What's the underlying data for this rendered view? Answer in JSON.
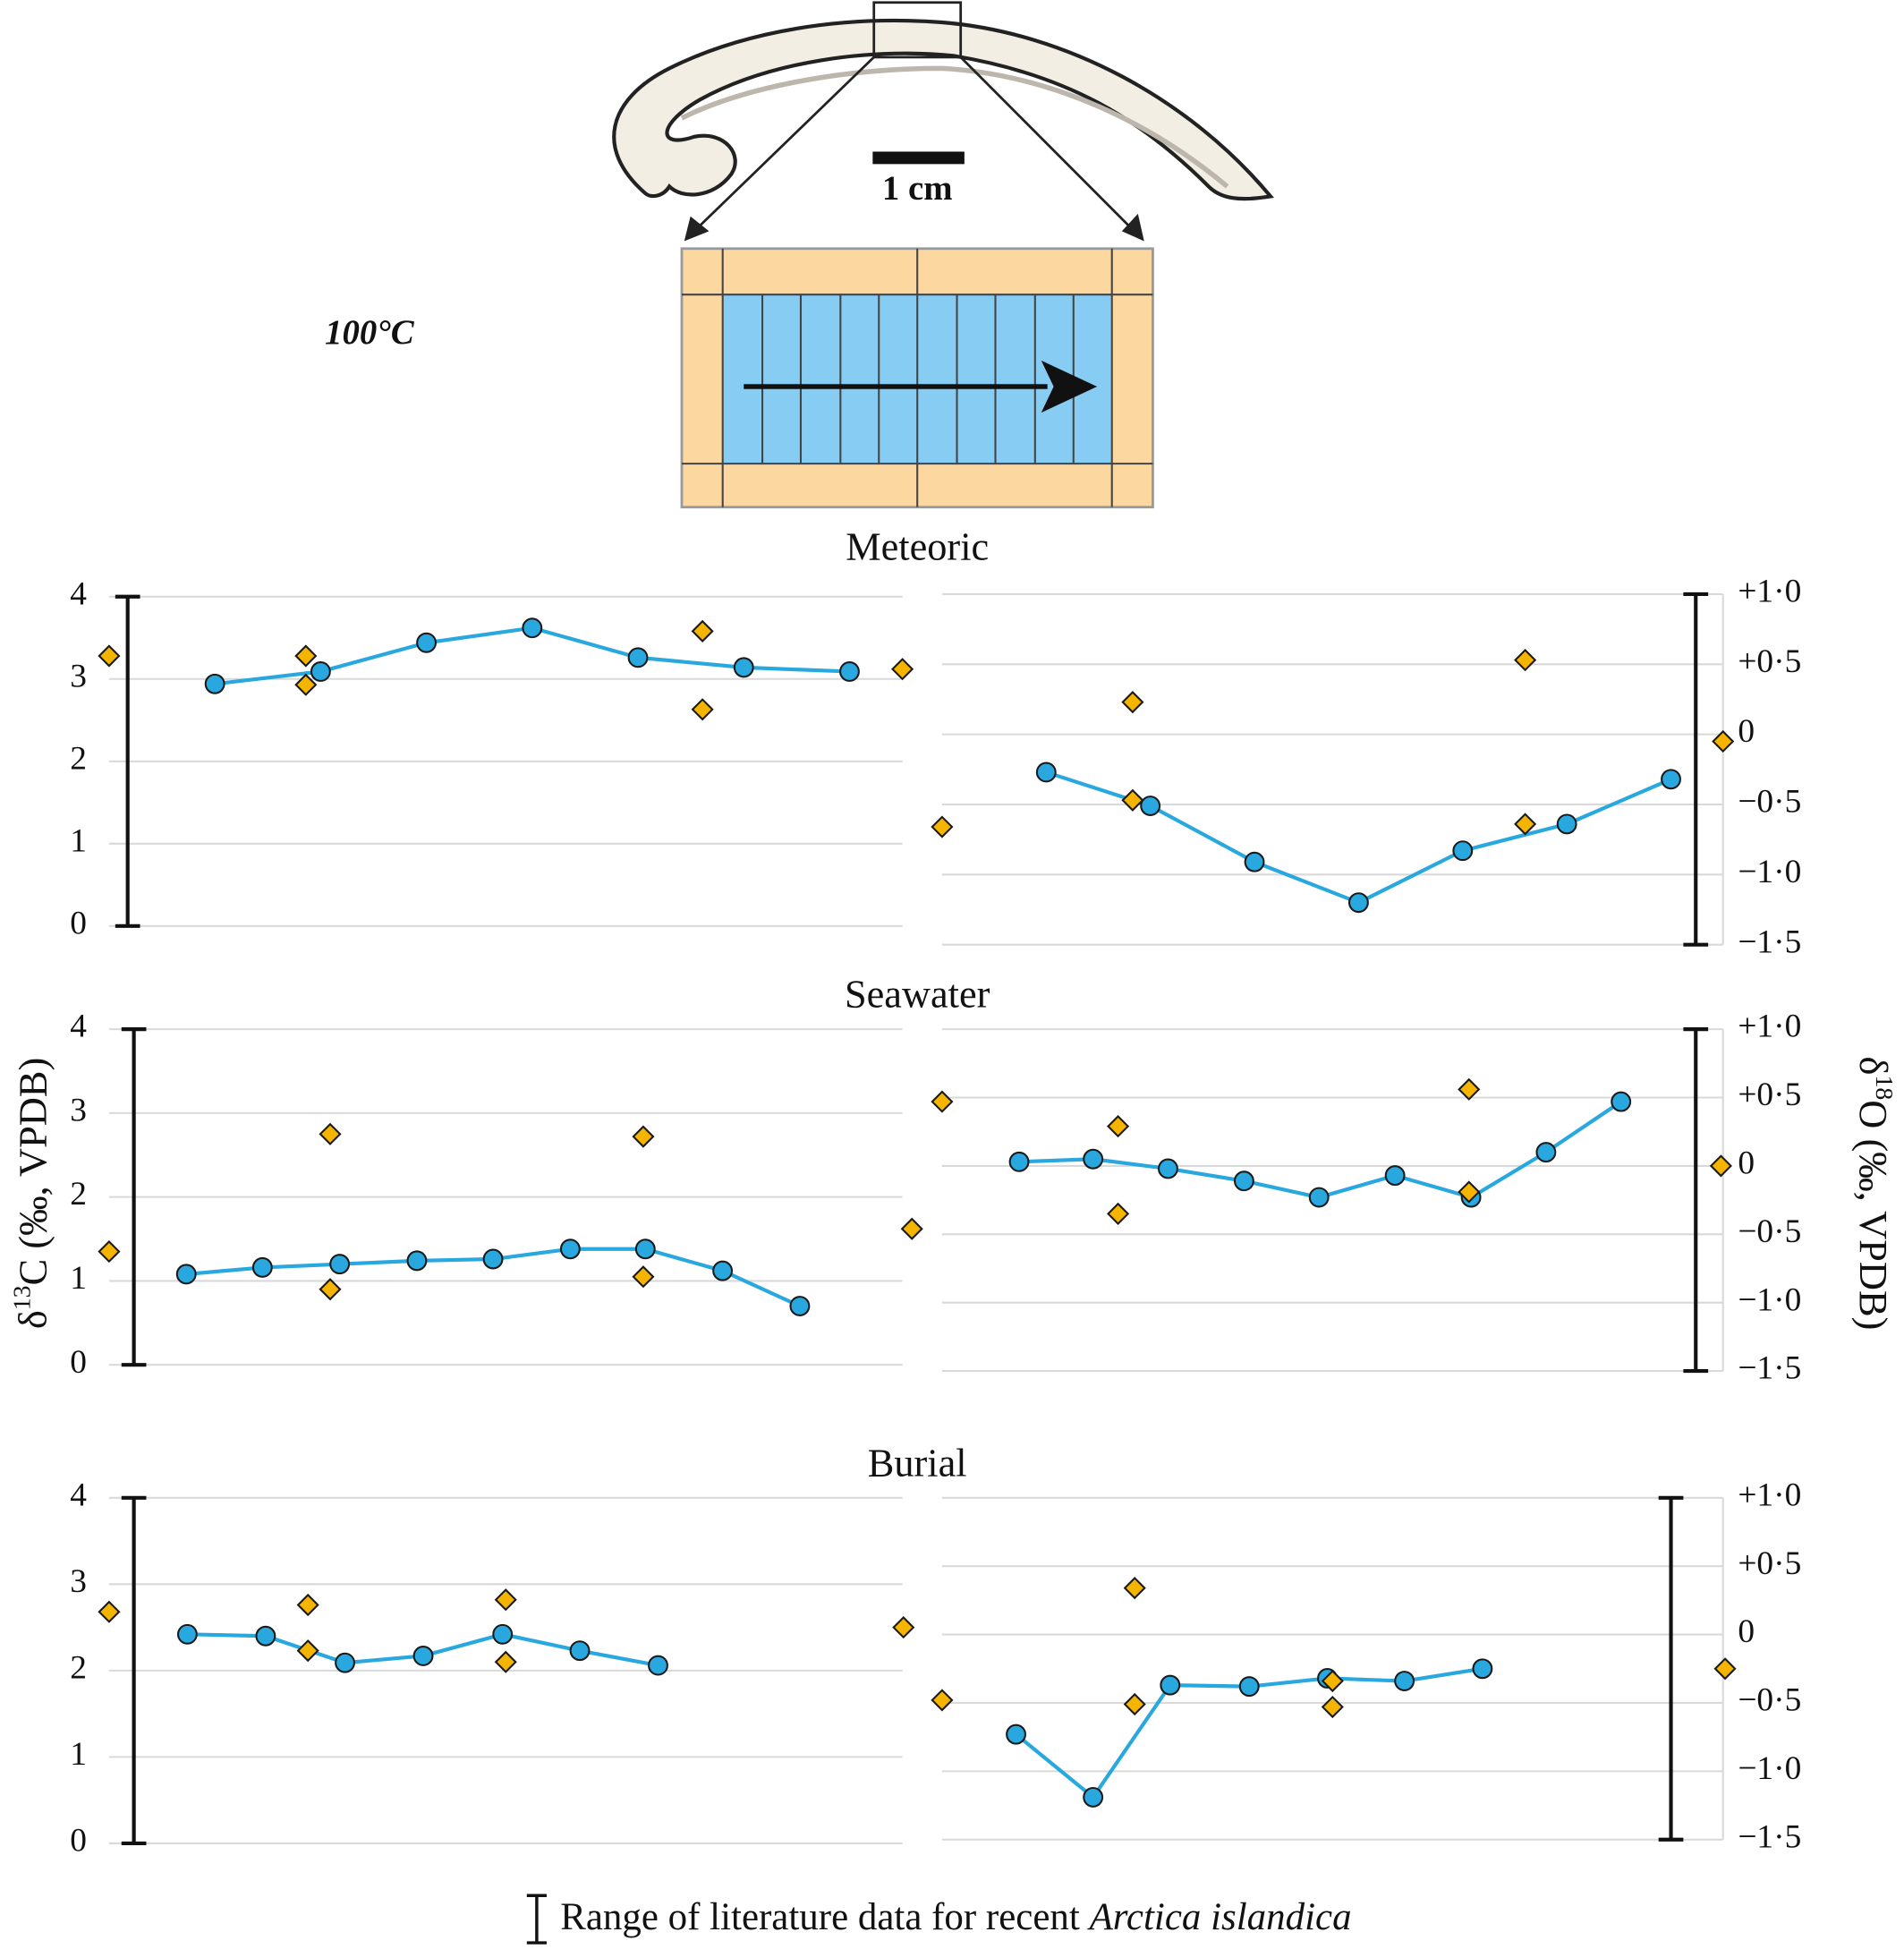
{
  "annotations": {
    "temperature": "100°C",
    "scale_bar": "1 cm"
  },
  "y_label_left": {
    "delta": "δ",
    "sup": "13",
    "rest": "C (‰, VPDB)"
  },
  "y_label_right": {
    "delta": "δ",
    "sup": "18",
    "rest": "O (‰, VPDB)"
  },
  "legend": {
    "text": "Range of literature data for recent ",
    "species": "Arctica islandica"
  },
  "chart_data": [
    {
      "type": "line",
      "title": "Meteoric",
      "side": "left",
      "xlim": [
        0,
        7.5
      ],
      "ylim": [
        0,
        4
      ],
      "yticks": [
        0,
        1,
        2,
        3,
        4
      ],
      "grid": true,
      "range": [
        0,
        4
      ],
      "series": [
        {
          "color": "#29a8e0",
          "marker": "circle",
          "x": [
            1,
            2,
            3,
            4,
            5,
            6,
            7
          ],
          "values": [
            2.94,
            3.09,
            3.44,
            3.62,
            3.26,
            3.14,
            3.09
          ]
        },
        {
          "color": "#f5b400",
          "marker": "diamond",
          "x": [
            0,
            1.86,
            1.86,
            5.61,
            5.61,
            7.5
          ],
          "values": [
            3.28,
            3.28,
            2.93,
            3.58,
            2.63,
            3.12
          ]
        }
      ]
    },
    {
      "type": "line",
      "side": "right",
      "xlim": [
        0,
        7.5
      ],
      "ylim": [
        -1.5,
        1
      ],
      "yticks": [
        {
          "value": -1.5,
          "label": "−1·5"
        },
        {
          "value": -1,
          "label": "−1·0"
        },
        {
          "value": -0.5,
          "label": "−0·5"
        },
        0,
        {
          "value": 0.5,
          "label": "+0·5"
        },
        {
          "value": 1,
          "label": "+1·0"
        }
      ],
      "grid": true,
      "range": [
        -1.5,
        1
      ],
      "series": [
        {
          "color": "#29a8e0",
          "marker": "circle",
          "x": [
            1,
            2,
            3,
            4,
            5,
            6,
            7
          ],
          "values": [
            -0.27,
            -0.51,
            -0.91,
            -1.2,
            -0.83,
            -0.64,
            -0.32
          ]
        },
        {
          "color": "#f5b400",
          "marker": "diamond",
          "x": [
            0,
            1.83,
            1.83,
            5.6,
            5.6,
            7.5
          ],
          "values": [
            -0.66,
            0.23,
            -0.47,
            0.53,
            -0.64,
            -0.05
          ]
        }
      ]
    },
    {
      "type": "line",
      "title": "Seawater",
      "side": "left",
      "xlim": [
        0,
        7.5
      ],
      "ylim": [
        0,
        4
      ],
      "yticks": [
        0,
        1,
        2,
        3,
        4
      ],
      "grid": true,
      "range": [
        0,
        4
      ],
      "series": [
        {
          "color": "#29a8e0",
          "marker": "circle",
          "x": [
            0.73,
            1.45,
            2.18,
            2.91,
            3.63,
            4.36,
            5.07,
            5.8,
            6.53
          ],
          "values": [
            1.08,
            1.16,
            1.2,
            1.24,
            1.26,
            1.38,
            1.38,
            1.12,
            0.7
          ]
        },
        {
          "color": "#f5b400",
          "marker": "diamond",
          "x": [
            0,
            2.09,
            2.09,
            5.05,
            5.05,
            7.59
          ],
          "values": [
            1.35,
            2.75,
            0.9,
            2.72,
            1.05,
            1.62
          ]
        }
      ]
    },
    {
      "type": "line",
      "side": "right",
      "xlim": [
        0,
        7.5
      ],
      "ylim": [
        -1.5,
        1
      ],
      "yticks": [
        {
          "value": -1.5,
          "label": "−1·5"
        },
        {
          "value": -1,
          "label": "−1·0"
        },
        {
          "value": -0.5,
          "label": "−0·5"
        },
        0,
        {
          "value": 0.5,
          "label": "+0·5"
        },
        {
          "value": 1,
          "label": "+1·0"
        }
      ],
      "grid": true,
      "range": [
        -1.5,
        1
      ],
      "series": [
        {
          "color": "#29a8e0",
          "marker": "circle",
          "x": [
            0.74,
            1.45,
            2.17,
            2.9,
            3.62,
            4.35,
            5.08,
            5.8,
            6.52
          ],
          "values": [
            0.03,
            0.05,
            -0.02,
            -0.11,
            -0.23,
            -0.07,
            -0.23,
            0.1,
            0.47
          ]
        },
        {
          "color": "#f5b400",
          "marker": "diamond",
          "x": [
            0,
            1.69,
            1.69,
            5.06,
            5.06,
            7.48
          ],
          "values": [
            0.47,
            0.29,
            -0.35,
            0.56,
            -0.19,
            0
          ]
        }
      ]
    },
    {
      "type": "line",
      "title": "Burial",
      "side": "left",
      "xlim": [
        0,
        7.5
      ],
      "ylim": [
        0,
        4
      ],
      "yticks": [
        0,
        1,
        2,
        3,
        4
      ],
      "grid": true,
      "range": [
        0,
        4
      ],
      "series": [
        {
          "color": "#29a8e0",
          "marker": "circle",
          "x": [
            0.74,
            1.48,
            2.23,
            2.97,
            3.72,
            4.45,
            5.19
          ],
          "values": [
            2.42,
            2.4,
            2.09,
            2.17,
            2.42,
            2.23,
            2.06
          ]
        },
        {
          "color": "#f5b400",
          "marker": "diamond",
          "x": [
            0,
            1.88,
            1.88,
            3.75,
            3.75,
            7.51
          ],
          "values": [
            2.68,
            2.76,
            2.23,
            2.82,
            2.1,
            2.5
          ]
        }
      ]
    },
    {
      "type": "line",
      "side": "right",
      "xlim": [
        0,
        7.5
      ],
      "ylim": [
        -1.5,
        1
      ],
      "yticks": [
        {
          "value": -1.5,
          "label": "−1·5"
        },
        {
          "value": -1,
          "label": "−1·0"
        },
        {
          "value": -0.5,
          "label": "−0·5"
        },
        0,
        {
          "value": 0.5,
          "label": "+0·5"
        },
        {
          "value": 1,
          "label": "+1·0"
        }
      ],
      "grid": true,
      "range": [
        -1.5,
        1
      ],
      "series": [
        {
          "color": "#29a8e0",
          "marker": "circle",
          "x": [
            0.71,
            1.45,
            2.19,
            2.95,
            3.7,
            4.44,
            5.19
          ],
          "values": [
            -0.73,
            -1.19,
            -0.37,
            -0.38,
            -0.32,
            -0.34,
            -0.25
          ]
        },
        {
          "color": "#f5b400",
          "marker": "diamond",
          "x": [
            0,
            1.85,
            1.85,
            3.75,
            3.75,
            7.52
          ],
          "values": [
            -0.48,
            0.34,
            -0.51,
            -0.34,
            -0.53,
            -0.25
          ]
        }
      ]
    }
  ]
}
